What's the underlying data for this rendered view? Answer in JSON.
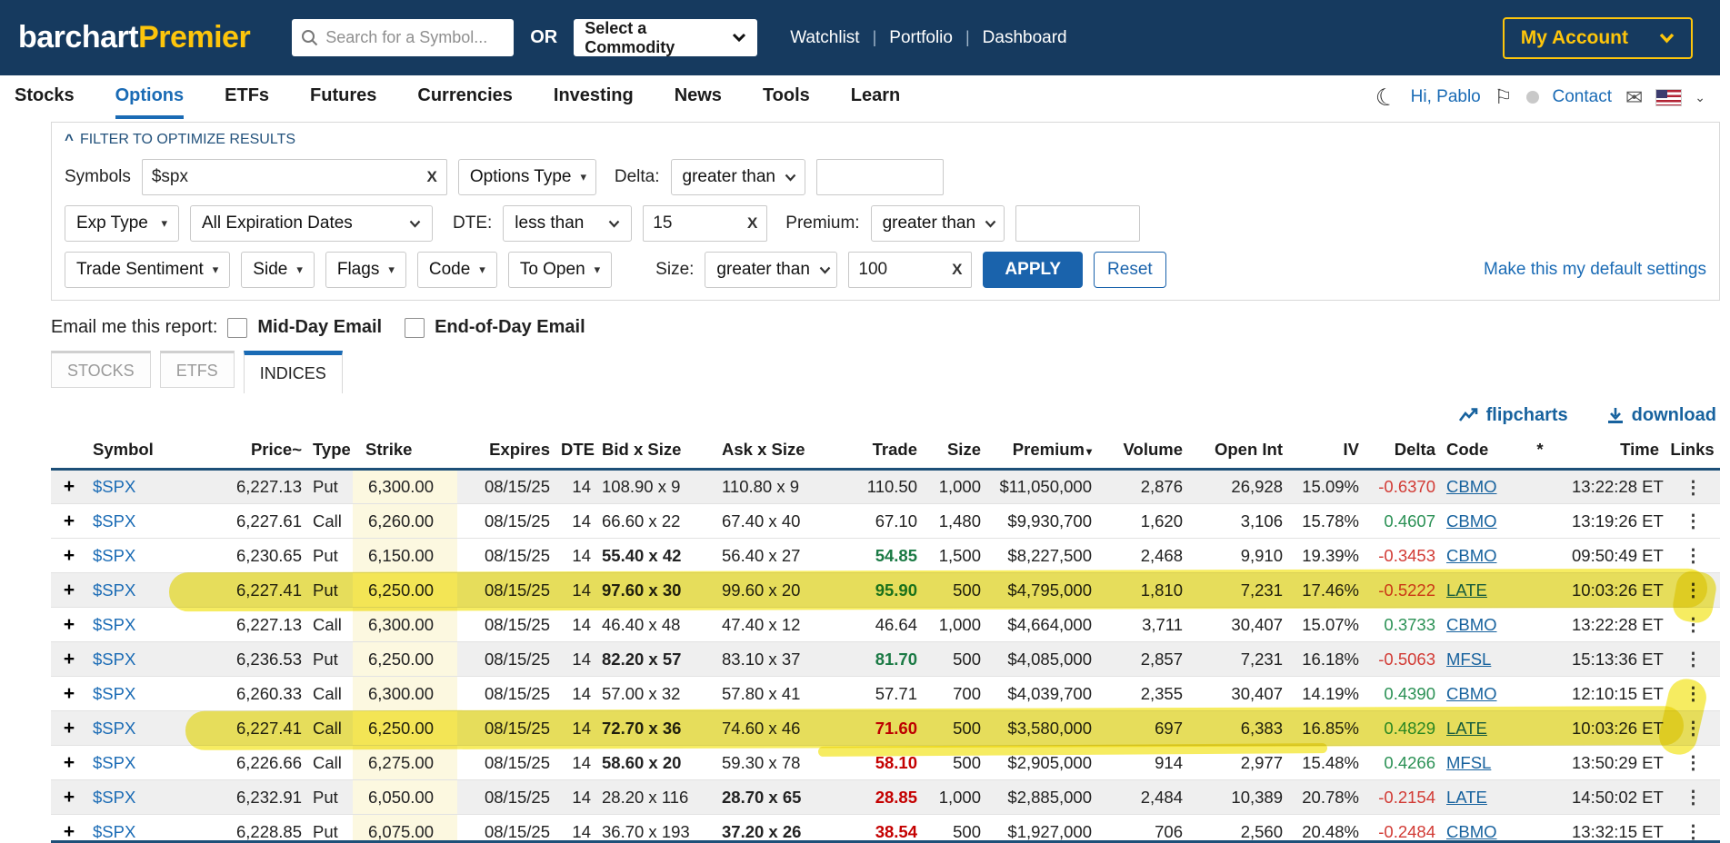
{
  "colors": {
    "navy": "#163a5f",
    "gold": "#fdc50b",
    "link_blue": "#1a6bb5",
    "apply_blue": "#1a63ac",
    "positive": "#1b7a45",
    "negative": "#c40000",
    "highlight": "#f0e100",
    "strike_bg": "#fcf8e0"
  },
  "icons": {
    "expand_row": "+",
    "kebab": "⋮",
    "collapse_filters": "^",
    "sort_desc": "▾",
    "moon": "☾",
    "flag": "⚐",
    "mail": "✉",
    "clear": "X"
  },
  "navbar": {
    "logo_part1": "barchart",
    "logo_part2": "Premier",
    "search_placeholder": "Search for a Symbol...",
    "or_label": "OR",
    "commodity_select": "Select a Commodity",
    "links": [
      "Watchlist",
      "Portfolio",
      "Dashboard"
    ],
    "account_button": "My Account"
  },
  "nav": {
    "items": [
      {
        "label": "Stocks",
        "active": false
      },
      {
        "label": "Options",
        "active": true
      },
      {
        "label": "ETFs",
        "active": false
      },
      {
        "label": "Futures",
        "active": false
      },
      {
        "label": "Currencies",
        "active": false
      },
      {
        "label": "Investing",
        "active": false
      },
      {
        "label": "News",
        "active": false
      },
      {
        "label": "Tools",
        "active": false
      },
      {
        "label": "Learn",
        "active": false
      }
    ],
    "greeting": "Hi, Pablo",
    "contact": "Contact"
  },
  "filters": {
    "title": "FILTER TO OPTIMIZE RESULTS",
    "symbols_label": "Symbols",
    "symbols_value": "$spx",
    "options_type_label": "Options Type",
    "delta_label": "Delta:",
    "delta_op": "greater than",
    "exp_type_label": "Exp Type",
    "exp_dates_value": "All Expiration Dates",
    "dte_label": "DTE:",
    "dte_op": "less than",
    "dte_value": "15",
    "premium_label": "Premium:",
    "premium_op": "greater than",
    "trade_sentiment_label": "Trade Sentiment",
    "side_label": "Side",
    "flags_label": "Flags",
    "code_label": "Code",
    "to_open_label": "To Open",
    "size_label": "Size:",
    "size_op": "greater than",
    "size_value": "100",
    "apply_label": "APPLY",
    "reset_label": "Reset",
    "default_link": "Make this my default settings"
  },
  "email": {
    "label": "Email me this report:",
    "midday": "Mid-Day Email",
    "endofday": "End-of-Day Email"
  },
  "tabs": [
    {
      "label": "STOCKS",
      "active": false
    },
    {
      "label": "ETFS",
      "active": false
    },
    {
      "label": "INDICES",
      "active": true
    }
  ],
  "toolbar": {
    "flipcharts": "flipcharts",
    "download": "download"
  },
  "table": {
    "columns": [
      "Symbol",
      "Price~",
      "Type",
      "Strike",
      "Expires",
      "DTE",
      "Bid x Size",
      "Ask x Size",
      "Trade",
      "Size",
      "Premium",
      "Volume",
      "Open Int",
      "IV",
      "Delta",
      "Code",
      "*",
      "Time",
      "Links"
    ],
    "sort_column": "Premium",
    "rows": [
      {
        "symbol": "$SPX",
        "price": "6,227.13",
        "type": "Put",
        "strike": "6,300.00",
        "expires": "08/15/25",
        "dte": "14",
        "bid": "108.90 x 9",
        "bid_bold": false,
        "ask": "110.80 x 9",
        "ask_bold": false,
        "trade": "110.50",
        "trade_dir": "flat",
        "size": "1,000",
        "premium": "$11,050,000",
        "volume": "2,876",
        "open_int": "26,928",
        "iv": "15.09%",
        "delta": "-0.6370",
        "delta_dir": "down",
        "code": "CBMO",
        "time": "13:22:28 ET",
        "shaded": true,
        "highlighted": false
      },
      {
        "symbol": "$SPX",
        "price": "6,227.61",
        "type": "Call",
        "strike": "6,260.00",
        "expires": "08/15/25",
        "dte": "14",
        "bid": "66.60 x 22",
        "bid_bold": false,
        "ask": "67.40 x 40",
        "ask_bold": false,
        "trade": "67.10",
        "trade_dir": "flat",
        "size": "1,480",
        "premium": "$9,930,700",
        "volume": "1,620",
        "open_int": "3,106",
        "iv": "15.78%",
        "delta": "0.4607",
        "delta_dir": "up",
        "code": "CBMO",
        "time": "13:19:26 ET",
        "shaded": false,
        "highlighted": false
      },
      {
        "symbol": "$SPX",
        "price": "6,230.65",
        "type": "Put",
        "strike": "6,150.00",
        "expires": "08/15/25",
        "dte": "14",
        "bid": "55.40 x 42",
        "bid_bold": true,
        "ask": "56.40 x 27",
        "ask_bold": false,
        "trade": "54.85",
        "trade_dir": "up",
        "size": "1,500",
        "premium": "$8,227,500",
        "volume": "2,468",
        "open_int": "9,910",
        "iv": "19.39%",
        "delta": "-0.3453",
        "delta_dir": "down",
        "code": "CBMO",
        "time": "09:50:49 ET",
        "shaded": false,
        "highlighted": false
      },
      {
        "symbol": "$SPX",
        "price": "6,227.41",
        "type": "Put",
        "strike": "6,250.00",
        "expires": "08/15/25",
        "dte": "14",
        "bid": "97.60 x 30",
        "bid_bold": true,
        "ask": "99.60 x 20",
        "ask_bold": false,
        "trade": "95.90",
        "trade_dir": "up",
        "size": "500",
        "premium": "$4,795,000",
        "volume": "1,810",
        "open_int": "7,231",
        "iv": "17.46%",
        "delta": "-0.5222",
        "delta_dir": "down",
        "code": "LATE",
        "time": "10:03:26 ET",
        "shaded": true,
        "highlighted": true
      },
      {
        "symbol": "$SPX",
        "price": "6,227.13",
        "type": "Call",
        "strike": "6,300.00",
        "expires": "08/15/25",
        "dte": "14",
        "bid": "46.40 x 48",
        "bid_bold": false,
        "ask": "47.40 x 12",
        "ask_bold": false,
        "trade": "46.64",
        "trade_dir": "flat",
        "size": "1,000",
        "premium": "$4,664,000",
        "volume": "3,711",
        "open_int": "30,407",
        "iv": "15.07%",
        "delta": "0.3733",
        "delta_dir": "up",
        "code": "CBMO",
        "time": "13:22:28 ET",
        "shaded": false,
        "highlighted": false
      },
      {
        "symbol": "$SPX",
        "price": "6,236.53",
        "type": "Put",
        "strike": "6,250.00",
        "expires": "08/15/25",
        "dte": "14",
        "bid": "82.20 x 57",
        "bid_bold": true,
        "ask": "83.10 x 37",
        "ask_bold": false,
        "trade": "81.70",
        "trade_dir": "up",
        "size": "500",
        "premium": "$4,085,000",
        "volume": "2,857",
        "open_int": "7,231",
        "iv": "16.18%",
        "delta": "-0.5063",
        "delta_dir": "down",
        "code": "MFSL",
        "time": "15:13:36 ET",
        "shaded": true,
        "highlighted": false
      },
      {
        "symbol": "$SPX",
        "price": "6,260.33",
        "type": "Call",
        "strike": "6,300.00",
        "expires": "08/15/25",
        "dte": "14",
        "bid": "57.00 x 32",
        "bid_bold": false,
        "ask": "57.80 x 41",
        "ask_bold": false,
        "trade": "57.71",
        "trade_dir": "flat",
        "size": "700",
        "premium": "$4,039,700",
        "volume": "2,355",
        "open_int": "30,407",
        "iv": "14.19%",
        "delta": "0.4390",
        "delta_dir": "up",
        "code": "CBMO",
        "time": "12:10:15 ET",
        "shaded": false,
        "highlighted": false
      },
      {
        "symbol": "$SPX",
        "price": "6,227.41",
        "type": "Call",
        "strike": "6,250.00",
        "expires": "08/15/25",
        "dte": "14",
        "bid": "72.70 x 36",
        "bid_bold": true,
        "ask": "74.60 x 46",
        "ask_bold": false,
        "trade": "71.60",
        "trade_dir": "down",
        "size": "500",
        "premium": "$3,580,000",
        "volume": "697",
        "open_int": "6,383",
        "iv": "16.85%",
        "delta": "0.4829",
        "delta_dir": "up",
        "code": "LATE",
        "time": "10:03:26 ET",
        "shaded": true,
        "highlighted": true
      },
      {
        "symbol": "$SPX",
        "price": "6,226.66",
        "type": "Call",
        "strike": "6,275.00",
        "expires": "08/15/25",
        "dte": "14",
        "bid": "58.60 x 20",
        "bid_bold": true,
        "ask": "59.30 x 78",
        "ask_bold": false,
        "trade": "58.10",
        "trade_dir": "down",
        "size": "500",
        "premium": "$2,905,000",
        "volume": "914",
        "open_int": "2,977",
        "iv": "15.48%",
        "delta": "0.4266",
        "delta_dir": "up",
        "code": "MFSL",
        "time": "13:50:29 ET",
        "shaded": false,
        "highlighted": false
      },
      {
        "symbol": "$SPX",
        "price": "6,232.91",
        "type": "Put",
        "strike": "6,050.00",
        "expires": "08/15/25",
        "dte": "14",
        "bid": "28.20 x 116",
        "bid_bold": false,
        "ask": "28.70 x 65",
        "ask_bold": true,
        "trade": "28.85",
        "trade_dir": "down",
        "size": "1,000",
        "premium": "$2,885,000",
        "volume": "2,484",
        "open_int": "10,389",
        "iv": "20.78%",
        "delta": "-0.2154",
        "delta_dir": "down",
        "code": "LATE",
        "time": "14:50:02 ET",
        "shaded": true,
        "highlighted": false
      },
      {
        "symbol": "$SPX",
        "price": "6,228.85",
        "type": "Put",
        "strike": "6,075.00",
        "expires": "08/15/25",
        "dte": "14",
        "bid": "36.70 x 193",
        "bid_bold": false,
        "ask": "37.20 x 26",
        "ask_bold": true,
        "trade": "38.54",
        "trade_dir": "down",
        "size": "500",
        "premium": "$1,927,000",
        "volume": "706",
        "open_int": "2,560",
        "iv": "20.48%",
        "delta": "-0.2484",
        "delta_dir": "down",
        "code": "CBMO",
        "time": "13:32:15 ET",
        "shaded": false,
        "highlighted": false
      }
    ]
  }
}
